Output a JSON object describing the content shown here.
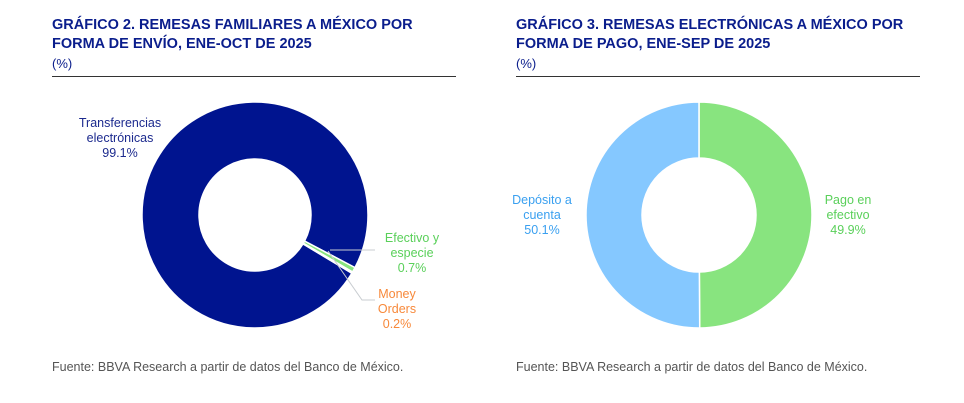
{
  "chart_data": [
    {
      "type": "pie",
      "donut": true,
      "title": "GRÁFICO 2. REMESAS FAMILIARES A MÉXICO POR FORMA DE ENVÍO, ENE-OCT DE 2025",
      "unit": "(%)",
      "categories": [
        "Transferencias electrónicas",
        "Efectivo y especie",
        "Money Orders"
      ],
      "values": [
        99.1,
        0.7,
        0.2
      ],
      "value_labels": [
        "99.1%",
        "0.7%",
        "0.2%"
      ],
      "colors": [
        "#00148f",
        "#88e47f",
        "#f7b77a"
      ],
      "label_colors": [
        "#1c2a8e",
        "#5ad05a",
        "#f7893b"
      ],
      "source": "Fuente: BBVA Research a partir de datos del Banco de México."
    },
    {
      "type": "pie",
      "donut": true,
      "title": "GRÁFICO 3. REMESAS ELECTRÓNICAS A MÉXICO POR FORMA DE PAGO, ENE-SEP DE 2025",
      "unit": "(%)",
      "categories": [
        "Pago en efectivo",
        "Depósito a cuenta"
      ],
      "values": [
        49.9,
        50.1
      ],
      "value_labels": [
        "49.9%",
        "50.1%"
      ],
      "colors": [
        "#88e47f",
        "#85c8ff"
      ],
      "label_colors": [
        "#5ad05a",
        "#3aa0f0"
      ],
      "source": "Fuente: BBVA Research a partir de datos del Banco de México."
    }
  ]
}
